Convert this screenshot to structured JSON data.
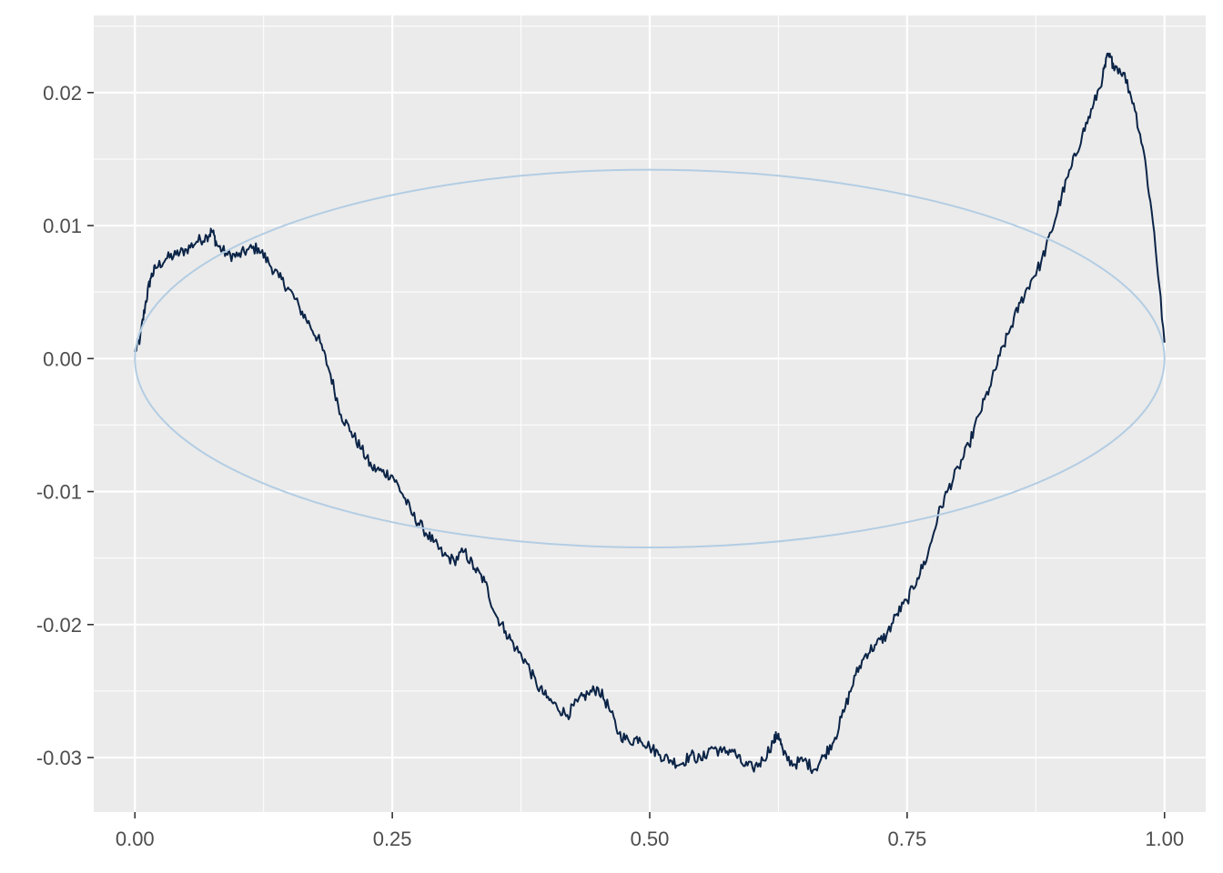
{
  "chart_data": {
    "type": "line",
    "title": "",
    "xlabel": "",
    "ylabel": "",
    "xlim": [
      -0.04,
      1.04
    ],
    "ylim": [
      -0.0341,
      0.0258
    ],
    "grid": true,
    "legend": "none",
    "x_ticks": [
      {
        "value": 0.0,
        "label": "0.00"
      },
      {
        "value": 0.25,
        "label": "0.25"
      },
      {
        "value": 0.5,
        "label": "0.50"
      },
      {
        "value": 0.75,
        "label": "0.75"
      },
      {
        "value": 1.0,
        "label": "1.00"
      }
    ],
    "y_ticks": [
      {
        "value": -0.03,
        "label": "-0.03"
      },
      {
        "value": -0.02,
        "label": "-0.02"
      },
      {
        "value": -0.01,
        "label": "-0.01"
      },
      {
        "value": 0.0,
        "label": "0.00"
      },
      {
        "value": 0.01,
        "label": "0.01"
      },
      {
        "value": 0.02,
        "label": "0.02"
      }
    ],
    "series": [
      {
        "color": "#0b2447",
        "x": [
          0.0,
          0.005,
          0.01,
          0.015,
          0.02,
          0.03,
          0.04,
          0.05,
          0.06,
          0.07,
          0.075,
          0.08,
          0.09,
          0.1,
          0.11,
          0.12,
          0.13,
          0.14,
          0.15,
          0.16,
          0.17,
          0.18,
          0.19,
          0.2,
          0.21,
          0.22,
          0.23,
          0.24,
          0.25,
          0.26,
          0.27,
          0.28,
          0.29,
          0.3,
          0.31,
          0.32,
          0.33,
          0.34,
          0.35,
          0.36,
          0.37,
          0.38,
          0.39,
          0.4,
          0.41,
          0.42,
          0.43,
          0.44,
          0.45,
          0.46,
          0.47,
          0.48,
          0.49,
          0.5,
          0.51,
          0.52,
          0.53,
          0.54,
          0.55,
          0.56,
          0.57,
          0.58,
          0.59,
          0.6,
          0.61,
          0.62,
          0.625,
          0.63,
          0.64,
          0.65,
          0.66,
          0.67,
          0.68,
          0.69,
          0.7,
          0.71,
          0.72,
          0.73,
          0.74,
          0.75,
          0.76,
          0.77,
          0.78,
          0.79,
          0.8,
          0.81,
          0.82,
          0.83,
          0.84,
          0.85,
          0.86,
          0.87,
          0.88,
          0.89,
          0.9,
          0.91,
          0.92,
          0.93,
          0.94,
          0.945,
          0.95,
          0.96,
          0.97,
          0.98,
          0.99,
          1.0
        ],
        "y": [
          0.0005,
          0.0015,
          0.004,
          0.006,
          0.0068,
          0.0075,
          0.0078,
          0.0082,
          0.0088,
          0.0092,
          0.0096,
          0.0085,
          0.0078,
          0.0077,
          0.0082,
          0.0083,
          0.0072,
          0.0061,
          0.0052,
          0.0038,
          0.0025,
          0.0012,
          -0.0012,
          -0.0042,
          -0.0055,
          -0.0068,
          -0.0082,
          -0.0085,
          -0.0088,
          -0.0102,
          -0.0118,
          -0.0128,
          -0.0138,
          -0.0148,
          -0.0152,
          -0.0145,
          -0.0158,
          -0.0168,
          -0.0192,
          -0.0205,
          -0.0218,
          -0.0228,
          -0.0245,
          -0.0255,
          -0.0262,
          -0.0268,
          -0.0258,
          -0.0252,
          -0.0248,
          -0.0262,
          -0.0282,
          -0.0288,
          -0.0285,
          -0.0292,
          -0.0298,
          -0.0302,
          -0.0305,
          -0.0298,
          -0.0302,
          -0.0292,
          -0.0296,
          -0.0294,
          -0.0305,
          -0.0308,
          -0.0302,
          -0.0288,
          -0.0282,
          -0.0298,
          -0.0305,
          -0.0302,
          -0.0309,
          -0.0298,
          -0.0285,
          -0.0262,
          -0.0238,
          -0.0222,
          -0.0215,
          -0.0208,
          -0.0192,
          -0.0182,
          -0.0165,
          -0.0148,
          -0.0118,
          -0.0098,
          -0.0082,
          -0.0065,
          -0.0042,
          -0.0022,
          0.0002,
          0.0022,
          0.0042,
          0.0058,
          0.0072,
          0.0095,
          0.0122,
          0.0145,
          0.0168,
          0.0188,
          0.0212,
          0.0228,
          0.0222,
          0.0215,
          0.0192,
          0.0155,
          0.0095,
          0.0012
        ]
      },
      {
        "color": "#b3cde3",
        "shape": "ellipse",
        "center": [
          0.5,
          0.0
        ],
        "rx": 0.5,
        "ry": 0.0142
      }
    ]
  }
}
